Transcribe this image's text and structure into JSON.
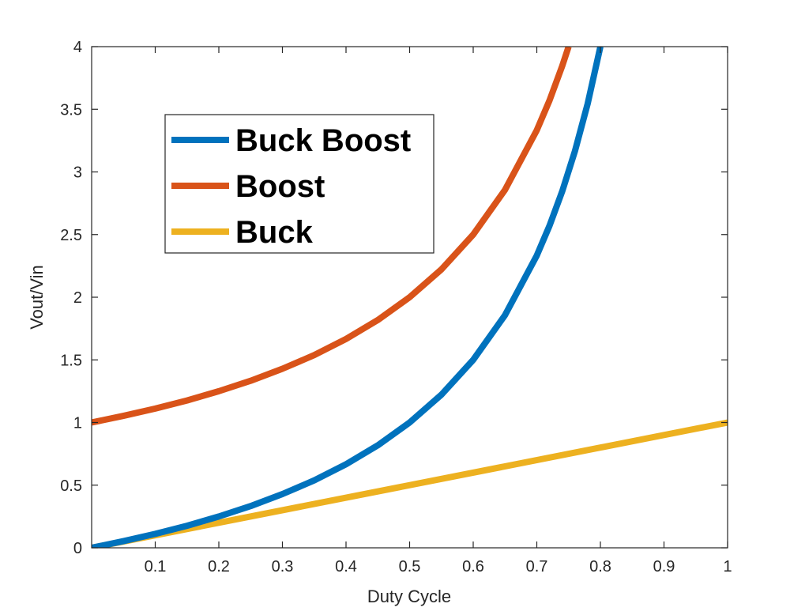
{
  "chart_data": {
    "type": "line",
    "title": "",
    "xlabel": "Duty Cycle",
    "ylabel": "Vout/Vin",
    "xlim": [
      0,
      1
    ],
    "ylim": [
      0,
      4
    ],
    "x_ticks": [
      0.1,
      0.2,
      0.3,
      0.4,
      0.5,
      0.6,
      0.7,
      0.8,
      0.9,
      1
    ],
    "x_tick_labels": [
      "0.1",
      "0.2",
      "0.3",
      "0.4",
      "0.5",
      "0.6",
      "0.7",
      "0.8",
      "0.9",
      "1"
    ],
    "y_ticks": [
      0,
      0.5,
      1,
      1.5,
      2,
      2.5,
      3,
      3.5,
      4
    ],
    "y_tick_labels": [
      "0",
      "0.5",
      "1",
      "1.5",
      "2",
      "2.5",
      "3",
      "3.5",
      "4"
    ],
    "grid": false,
    "legend_position": "top-left",
    "series": [
      {
        "name": "Buck Boost",
        "color": "#0072BD",
        "x": [
          0,
          0.05,
          0.1,
          0.15,
          0.2,
          0.25,
          0.3,
          0.35,
          0.4,
          0.45,
          0.5,
          0.55,
          0.6,
          0.65,
          0.7,
          0.72,
          0.74,
          0.76,
          0.78,
          0.8
        ],
        "values": [
          0,
          0.053,
          0.111,
          0.176,
          0.25,
          0.333,
          0.429,
          0.538,
          0.667,
          0.818,
          1,
          1.222,
          1.5,
          1.857,
          2.333,
          2.571,
          2.846,
          3.167,
          3.545,
          4
        ]
      },
      {
        "name": "Boost",
        "color": "#D95319",
        "x": [
          0,
          0.05,
          0.1,
          0.15,
          0.2,
          0.25,
          0.3,
          0.35,
          0.4,
          0.45,
          0.5,
          0.55,
          0.6,
          0.65,
          0.7,
          0.72,
          0.74,
          0.75
        ],
        "values": [
          1,
          1.053,
          1.111,
          1.176,
          1.25,
          1.333,
          1.429,
          1.538,
          1.667,
          1.818,
          2,
          2.222,
          2.5,
          2.857,
          3.333,
          3.571,
          3.846,
          4
        ]
      },
      {
        "name": "Buck",
        "color": "#EDB120",
        "x": [
          0,
          1
        ],
        "values": [
          0,
          1
        ]
      }
    ]
  }
}
